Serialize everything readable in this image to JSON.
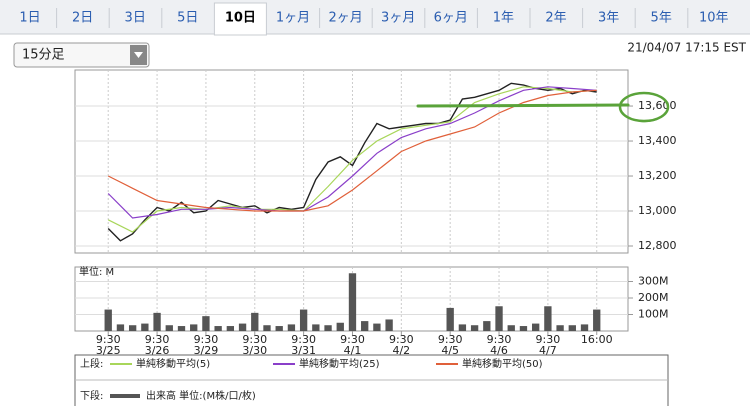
{
  "tabs": [
    "1日",
    "2日",
    "3日",
    "5日",
    "10日",
    "1ヶ月",
    "2ヶ月",
    "3ヶ月",
    "6ヶ月",
    "1年",
    "2年",
    "3年",
    "5年",
    "10年"
  ],
  "active_tab": 4,
  "interval_select": "15分足",
  "timestamp": "21/04/07 17:15 EST",
  "chart_data": [
    {
      "type": "line",
      "legend_label": "上段:",
      "xlim": [
        -0.68,
        10.64
      ],
      "ylim": [
        12760,
        13806
      ],
      "yticks": [
        {
          "value": 12800,
          "label": "12,800"
        },
        {
          "value": 13000,
          "label": "13,000"
        },
        {
          "value": 13200,
          "label": "13,200"
        },
        {
          "value": 13400,
          "label": "13,400"
        },
        {
          "value": 13600,
          "label": "13,600"
        }
      ],
      "grid": true,
      "series": [
        {
          "color": "#222222",
          "x": [
            0,
            0.25,
            0.5,
            0.75,
            1,
            1.25,
            1.5,
            1.75,
            2,
            2.25,
            2.5,
            2.75,
            3,
            3.25,
            3.5,
            3.75,
            4,
            4.25,
            4.5,
            4.75,
            5,
            5.25,
            5.5,
            5.75,
            6,
            6.25,
            6.5,
            6.75,
            7,
            7.25,
            7.5,
            7.75,
            8,
            8.25,
            8.5,
            8.75,
            9,
            9.25,
            9.5,
            9.75,
            10
          ],
          "values": [
            12900,
            12830,
            12870,
            12950,
            13020,
            13000,
            13050,
            12990,
            13000,
            13060,
            13040,
            13020,
            13030,
            12990,
            13020,
            13010,
            13020,
            13180,
            13280,
            13310,
            13260,
            13390,
            13500,
            13470,
            13480,
            13490,
            13500,
            13500,
            13520,
            13640,
            13650,
            13670,
            13690,
            13730,
            13720,
            13700,
            13690,
            13700,
            13670,
            13690,
            13680
          ]
        },
        {
          "name": "単純移動平均(5)",
          "color": "#a8d65a",
          "x": [
            0,
            0.5,
            1,
            1.5,
            2,
            2.5,
            3,
            3.5,
            4,
            4.5,
            5,
            5.5,
            6,
            6.5,
            7,
            7.5,
            8,
            8.5,
            9,
            9.5,
            10
          ],
          "values": [
            12950,
            12880,
            13000,
            13020,
            13010,
            13030,
            13010,
            13010,
            13000,
            13140,
            13290,
            13400,
            13470,
            13490,
            13510,
            13620,
            13670,
            13710,
            13700,
            13680,
            13690
          ]
        },
        {
          "name": "単純移動平均(25)",
          "color": "#8a3fc9",
          "x": [
            0,
            0.5,
            1,
            1.5,
            2,
            2.5,
            3,
            3.5,
            4,
            4.5,
            5,
            5.5,
            6,
            6.5,
            7,
            7.5,
            8,
            8.5,
            9,
            9.5,
            10
          ],
          "values": [
            13100,
            12960,
            12980,
            13010,
            13010,
            13020,
            13010,
            13000,
            13000,
            13080,
            13200,
            13330,
            13420,
            13470,
            13500,
            13560,
            13630,
            13690,
            13710,
            13700,
            13690
          ]
        },
        {
          "name": "単純移動平均(50)",
          "color": "#e0603a",
          "x": [
            0,
            0.5,
            1,
            1.5,
            2,
            2.5,
            3,
            3.5,
            4,
            4.5,
            5,
            5.5,
            6,
            6.5,
            7,
            7.5,
            8,
            8.5,
            9,
            9.5,
            10
          ],
          "values": [
            13200,
            13130,
            13060,
            13040,
            13020,
            13010,
            13000,
            13000,
            13000,
            13030,
            13120,
            13230,
            13340,
            13400,
            13440,
            13480,
            13560,
            13620,
            13660,
            13680,
            13690
          ]
        }
      ]
    },
    {
      "type": "bar",
      "legend_label": "下段:",
      "unit_label": "単位: M",
      "xlim": [
        -0.68,
        10.64
      ],
      "xticks": [
        {
          "value": 0,
          "label": "9:30"
        },
        {
          "value": 1,
          "label": "9:30"
        },
        {
          "value": 2,
          "label": "9:30"
        },
        {
          "value": 3,
          "label": "9:30"
        },
        {
          "value": 4,
          "label": "9:30"
        },
        {
          "value": 5,
          "label": "9:30"
        },
        {
          "value": 6,
          "label": "9:30"
        },
        {
          "value": 7,
          "label": "9:30"
        },
        {
          "value": 8,
          "label": "9:30"
        },
        {
          "value": 9,
          "label": "9:30"
        },
        {
          "value": 10,
          "label": "16:00"
        }
      ],
      "xtick_dates": [
        "3/25",
        "3/26",
        "3/29",
        "3/30",
        "3/31",
        "4/1",
        "4/2",
        "4/5",
        "4/6",
        "4/7",
        null
      ],
      "ylim": [
        0,
        388
      ],
      "yticks": [
        {
          "value": 100,
          "label": "100M"
        },
        {
          "value": 200,
          "label": "200M"
        },
        {
          "value": 300,
          "label": "300M"
        }
      ],
      "grid": true,
      "series": [
        {
          "name": "出来高 単位:(M株/口/枚)",
          "color": "#555555",
          "x": [
            0,
            0.25,
            0.5,
            0.75,
            1,
            1.25,
            1.5,
            1.75,
            2,
            2.25,
            2.5,
            2.75,
            3,
            3.25,
            3.5,
            3.75,
            4,
            4.25,
            4.5,
            4.75,
            5,
            5.25,
            5.5,
            5.75,
            6,
            6.25,
            6.5,
            6.75,
            7,
            7.25,
            7.5,
            7.75,
            8,
            8.25,
            8.5,
            8.75,
            9,
            9.25,
            9.5,
            9.75,
            10
          ],
          "values": [
            130,
            40,
            35,
            45,
            110,
            35,
            30,
            40,
            90,
            30,
            30,
            45,
            110,
            35,
            30,
            40,
            130,
            40,
            35,
            50,
            350,
            60,
            45,
            70,
            null,
            null,
            null,
            null,
            140,
            40,
            35,
            60,
            150,
            35,
            30,
            45,
            150,
            35,
            35,
            40,
            130
          ]
        }
      ]
    }
  ]
}
